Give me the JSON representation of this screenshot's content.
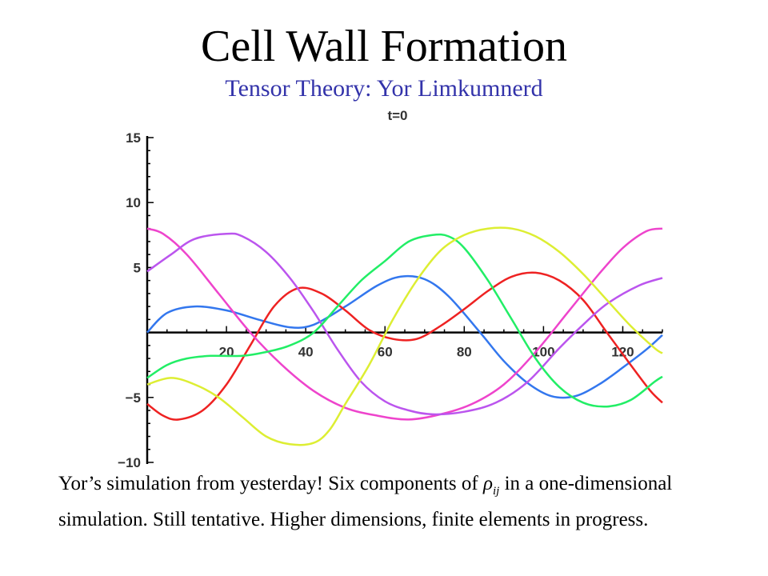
{
  "header": {
    "title": "Cell Wall Formation",
    "subtitle": "Tensor Theory: Yor Limkumnerd"
  },
  "caption": {
    "part1": "Yor’s simulation from yesterday! Six components of ",
    "symbol": "ρ",
    "subscript": "ij",
    "part2": " in a one-dimensional simulation. Still tentative. Higher dimensions, finite elements in progress."
  },
  "chart_data": {
    "type": "line",
    "title": "t=0",
    "xlim": [
      0,
      130
    ],
    "ylim": [
      -10,
      15
    ],
    "x_ticks": [
      20,
      40,
      60,
      80,
      100,
      120
    ],
    "y_ticks": [
      15,
      10,
      5,
      -5,
      -10
    ],
    "x_tick_labels": [
      "20",
      "40",
      "60",
      "80",
      "100",
      "120"
    ],
    "y_tick_labels": [
      "15",
      "10",
      "5",
      "−5",
      "−10"
    ],
    "series": [
      {
        "color": "#3377ee",
        "points": [
          [
            0,
            0
          ],
          [
            5,
            1.5
          ],
          [
            12,
            2
          ],
          [
            20,
            1.7
          ],
          [
            28,
            1
          ],
          [
            36,
            0.4
          ],
          [
            42,
            0.6
          ],
          [
            50,
            2
          ],
          [
            58,
            3.6
          ],
          [
            64,
            4.3
          ],
          [
            70,
            4.1
          ],
          [
            76,
            2.8
          ],
          [
            84,
            0
          ],
          [
            90,
            -2.2
          ],
          [
            96,
            -3.9
          ],
          [
            102,
            -4.9
          ],
          [
            108,
            -4.9
          ],
          [
            114,
            -4
          ],
          [
            120,
            -2.7
          ],
          [
            126,
            -1.3
          ],
          [
            130,
            -0.2
          ]
        ]
      },
      {
        "color": "#ee2222",
        "points": [
          [
            0,
            -5.5
          ],
          [
            4,
            -6.4
          ],
          [
            8,
            -6.7
          ],
          [
            14,
            -6
          ],
          [
            20,
            -4
          ],
          [
            26,
            -1
          ],
          [
            32,
            2
          ],
          [
            38,
            3.4
          ],
          [
            44,
            3
          ],
          [
            50,
            1.7
          ],
          [
            56,
            0.2
          ],
          [
            62,
            -0.5
          ],
          [
            68,
            -0.5
          ],
          [
            74,
            0.5
          ],
          [
            80,
            1.8
          ],
          [
            86,
            3.2
          ],
          [
            92,
            4.3
          ],
          [
            98,
            4.6
          ],
          [
            104,
            4
          ],
          [
            110,
            2.5
          ],
          [
            116,
            0
          ],
          [
            122,
            -2.5
          ],
          [
            127,
            -4.5
          ],
          [
            130,
            -5.4
          ]
        ]
      },
      {
        "color": "#ee44cc",
        "points": [
          [
            0,
            8
          ],
          [
            4,
            7.6
          ],
          [
            10,
            6
          ],
          [
            18,
            3
          ],
          [
            26,
            0
          ],
          [
            34,
            -2.5
          ],
          [
            42,
            -4.5
          ],
          [
            50,
            -5.8
          ],
          [
            58,
            -6.4
          ],
          [
            66,
            -6.7
          ],
          [
            74,
            -6.3
          ],
          [
            82,
            -5.5
          ],
          [
            90,
            -4
          ],
          [
            98,
            -1.5
          ],
          [
            106,
            1.5
          ],
          [
            114,
            4.5
          ],
          [
            120,
            6.5
          ],
          [
            126,
            7.8
          ],
          [
            130,
            8
          ]
        ]
      },
      {
        "color": "#bb55ee",
        "points": [
          [
            0,
            4.7
          ],
          [
            6,
            6
          ],
          [
            12,
            7.2
          ],
          [
            20,
            7.6
          ],
          [
            24,
            7.4
          ],
          [
            30,
            6.2
          ],
          [
            36,
            4.2
          ],
          [
            42,
            1.6
          ],
          [
            48,
            -1.3
          ],
          [
            54,
            -3.8
          ],
          [
            60,
            -5.3
          ],
          [
            66,
            -6
          ],
          [
            72,
            -6.3
          ],
          [
            80,
            -6.1
          ],
          [
            88,
            -5.4
          ],
          [
            96,
            -3.8
          ],
          [
            104,
            -1.2
          ],
          [
            110,
            0.6
          ],
          [
            116,
            2.2
          ],
          [
            124,
            3.6
          ],
          [
            130,
            4.2
          ]
        ]
      },
      {
        "color": "#22ee66",
        "points": [
          [
            0,
            -3.5
          ],
          [
            5,
            -2.5
          ],
          [
            10,
            -2
          ],
          [
            16,
            -1.8
          ],
          [
            24,
            -1.8
          ],
          [
            30,
            -1.5
          ],
          [
            36,
            -1
          ],
          [
            42,
            0
          ],
          [
            48,
            2
          ],
          [
            54,
            4
          ],
          [
            60,
            5.5
          ],
          [
            66,
            7
          ],
          [
            72,
            7.5
          ],
          [
            76,
            7.4
          ],
          [
            80,
            6.5
          ],
          [
            86,
            4
          ],
          [
            92,
            1
          ],
          [
            98,
            -2
          ],
          [
            104,
            -4.2
          ],
          [
            110,
            -5.4
          ],
          [
            116,
            -5.7
          ],
          [
            122,
            -5.2
          ],
          [
            128,
            -3.8
          ],
          [
            130,
            -3.4
          ]
        ]
      },
      {
        "color": "#ddee33",
        "points": [
          [
            0,
            -4
          ],
          [
            6,
            -3.5
          ],
          [
            12,
            -4
          ],
          [
            18,
            -5
          ],
          [
            24,
            -6.5
          ],
          [
            30,
            -8
          ],
          [
            36,
            -8.6
          ],
          [
            42,
            -8.5
          ],
          [
            46,
            -7.5
          ],
          [
            50,
            -5.5
          ],
          [
            56,
            -2.5
          ],
          [
            62,
            1
          ],
          [
            68,
            4
          ],
          [
            74,
            6.3
          ],
          [
            80,
            7.5
          ],
          [
            86,
            8
          ],
          [
            92,
            8
          ],
          [
            98,
            7.4
          ],
          [
            104,
            6.2
          ],
          [
            110,
            4.5
          ],
          [
            116,
            2.5
          ],
          [
            122,
            0.5
          ],
          [
            128,
            -1.2
          ],
          [
            130,
            -1.6
          ]
        ]
      }
    ]
  }
}
